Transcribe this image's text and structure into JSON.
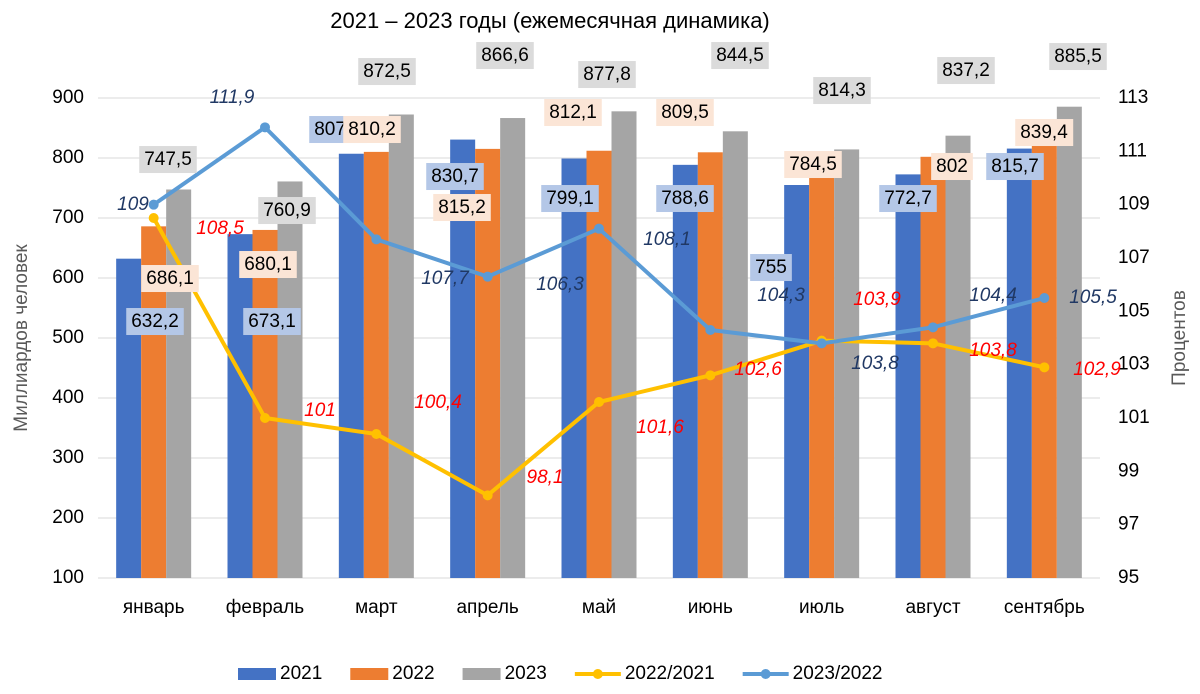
{
  "chart_data": {
    "type": "bar",
    "title": "2021 – 2023 годы (ежемесячная динамика)",
    "y_label": "Миллиардов человек",
    "y2_label": "Процентов",
    "categories": [
      "январь",
      "февраль",
      "март",
      "апрель",
      "май",
      "июнь",
      "июль",
      "август",
      "сентябрь"
    ],
    "ylim": [
      100,
      900
    ],
    "yticks": [
      100,
      200,
      300,
      400,
      500,
      600,
      700,
      800,
      900
    ],
    "y2lim": [
      95,
      113
    ],
    "y2ticks": [
      95,
      97,
      99,
      101,
      103,
      105,
      107,
      109,
      111,
      113
    ],
    "legend": "bottom",
    "series": [
      {
        "name": "2021",
        "type": "bar",
        "color": "#4472c4",
        "label_bg": "#b4c7e7",
        "values": [
          632.2,
          673.1,
          807.1,
          830.7,
          799.1,
          788.6,
          755,
          772.7,
          815.7
        ],
        "value_labels": [
          "632,2",
          "673,1",
          "807,1",
          "830,7",
          "799,1",
          "788,6",
          "755",
          "772,7",
          "815,7"
        ]
      },
      {
        "name": "2022",
        "type": "bar",
        "color": "#ed7d31",
        "label_bg": "#fbe5d6",
        "values": [
          686.1,
          680.1,
          810.2,
          815.2,
          812.1,
          809.5,
          784.5,
          802,
          839.4
        ],
        "value_labels": [
          "686,1",
          "680,1",
          "810,2",
          "815,2",
          "812,1",
          "809,5",
          "784,5",
          "802",
          "839,4"
        ]
      },
      {
        "name": "2023",
        "type": "bar",
        "color": "#a5a5a5",
        "label_bg": "#dbdbdb",
        "values": [
          747.5,
          760.9,
          872.5,
          866.6,
          877.8,
          844.5,
          814.3,
          837.2,
          885.5
        ],
        "value_labels": [
          "747,5",
          "760,9",
          "872,5",
          "866,6",
          "877,8",
          "844,5",
          "814,3",
          "837,2",
          "885,5"
        ]
      },
      {
        "name": "2022/2021",
        "type": "line",
        "axis": "y2",
        "color": "#ffc000",
        "label_color": "#ff0000",
        "values": [
          108.5,
          101,
          100.4,
          98.1,
          101.6,
          102.6,
          103.9,
          103.8,
          102.9
        ],
        "value_labels": [
          "108,5",
          "101",
          "100,4",
          "98,1",
          "101,6",
          "102,6",
          "103,9",
          "103,8",
          "102,9"
        ]
      },
      {
        "name": "2023/2022",
        "type": "line",
        "axis": "y2",
        "color": "#5b9bd5",
        "label_color": "#203864",
        "values": [
          109,
          111.9,
          107.7,
          106.3,
          108.1,
          104.3,
          103.8,
          104.4,
          105.5
        ],
        "value_labels": [
          "109",
          "111,9",
          "107,7",
          "106,3",
          "108,1",
          "104,3",
          "103,8",
          "104,4",
          "105,5"
        ]
      }
    ]
  }
}
